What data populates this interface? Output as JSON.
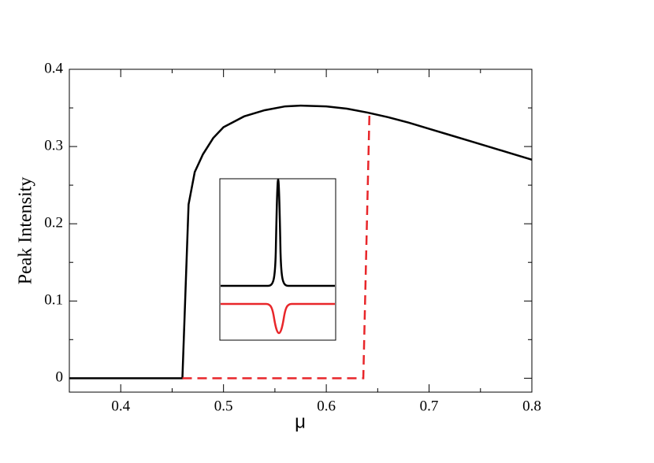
{
  "chart_data": {
    "type": "line",
    "xlabel": "μ",
    "ylabel": "Peak Intensity",
    "xlim": [
      0.35,
      0.8
    ],
    "ylim": [
      -0.018,
      0.4
    ],
    "xticks": [
      0.4,
      0.5,
      0.6,
      0.7,
      0.8
    ],
    "yticks": [
      0,
      0.1,
      0.2,
      0.3,
      0.4
    ],
    "series": [
      {
        "color": "#000000",
        "dashed": false,
        "x": [
          0.35,
          0.46,
          0.466,
          0.472,
          0.48,
          0.49,
          0.5,
          0.52,
          0.54,
          0.56,
          0.575,
          0.6,
          0.62,
          0.64,
          0.66,
          0.68,
          0.7,
          0.72,
          0.74,
          0.76,
          0.78,
          0.8
        ],
        "values": [
          0,
          0,
          0.225,
          0.267,
          0.29,
          0.311,
          0.325,
          0.339,
          0.347,
          0.352,
          0.353,
          0.352,
          0.349,
          0.344,
          0.338,
          0.331,
          0.323,
          0.315,
          0.307,
          0.299,
          0.291,
          0.283
        ]
      },
      {
        "color": "#e8262a",
        "dashed": true,
        "x": [
          0.46,
          0.636,
          0.642
        ],
        "values": [
          0,
          0,
          0.344
        ]
      }
    ]
  }
}
